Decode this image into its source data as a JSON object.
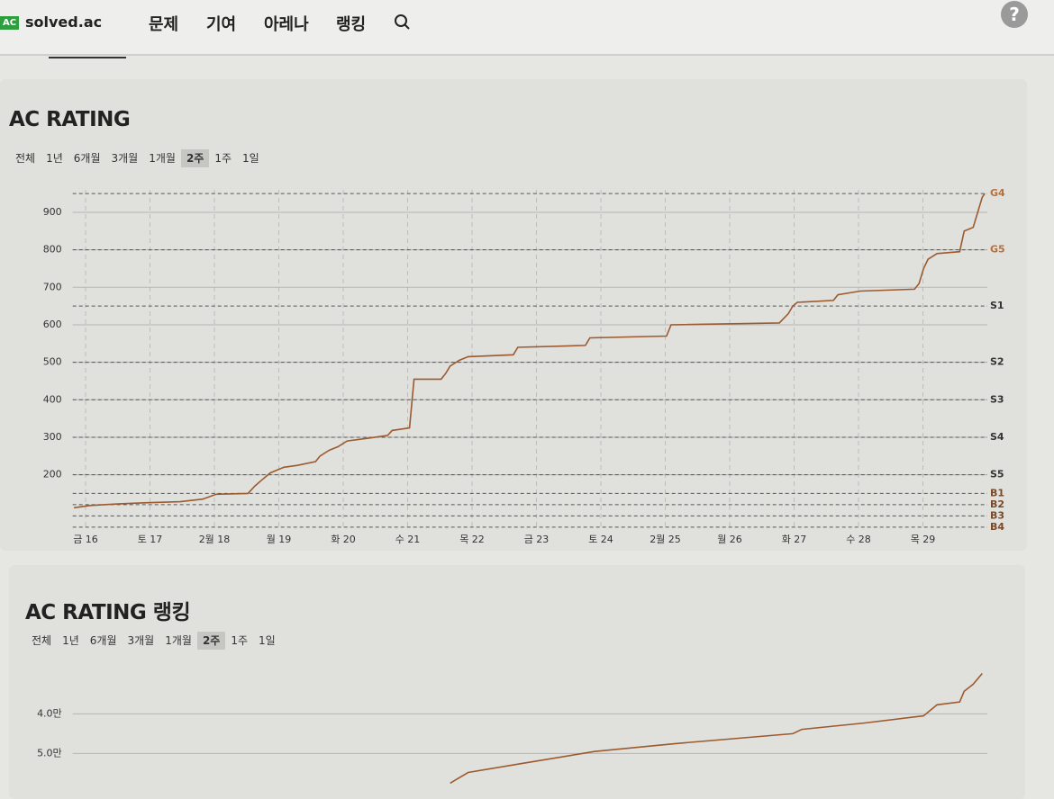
{
  "header": {
    "badge": "AC",
    "logo": "solved.ac",
    "nav": [
      "문제",
      "기여",
      "아레나",
      "랭킹"
    ],
    "help": "?"
  },
  "chart_data": [
    {
      "type": "line",
      "title": "AC RATING",
      "periods": [
        "전체",
        "1년",
        "6개월",
        "3개월",
        "1개월",
        "2주",
        "1주",
        "1일"
      ],
      "selected_period": 5,
      "x": [
        -0.18,
        0.07,
        0.49,
        0.91,
        1.47,
        1.82,
        2.03,
        2.52,
        2.63,
        2.73,
        2.87,
        3.08,
        3.29,
        3.57,
        3.64,
        3.78,
        3.92,
        4.06,
        4.41,
        4.69,
        4.76,
        5.03,
        5.1,
        5.52,
        5.59,
        5.66,
        5.8,
        5.94,
        6.64,
        6.71,
        7.76,
        7.83,
        9.02,
        9.09,
        10.77,
        10.91,
        10.98,
        11.05,
        11.61,
        11.68,
        12.03,
        12.87,
        12.94,
        13.01,
        13.08,
        13.22,
        13.57,
        13.64,
        13.78,
        13.85,
        13.92,
        13.96
      ],
      "series": [
        {
          "color": "#9c5a2e",
          "values": [
            112,
            118,
            122,
            125,
            128,
            135,
            148,
            150,
            170,
            185,
            205,
            220,
            225,
            235,
            250,
            265,
            275,
            290,
            298,
            305,
            318,
            325,
            455,
            455,
            470,
            490,
            505,
            515,
            520,
            540,
            545,
            565,
            570,
            600,
            605,
            630,
            650,
            660,
            665,
            680,
            690,
            695,
            710,
            750,
            775,
            790,
            795,
            850,
            860,
            900,
            940,
            950
          ]
        }
      ],
      "xlim": [
        -0.2,
        14
      ],
      "xticks": [
        {
          "value": 0,
          "label": "금 16"
        },
        {
          "value": 1,
          "label": "토 17"
        },
        {
          "value": 2,
          "label": "2월 18"
        },
        {
          "value": 3,
          "label": "월 19"
        },
        {
          "value": 4,
          "label": "화 20"
        },
        {
          "value": 5,
          "label": "수 21"
        },
        {
          "value": 6,
          "label": "목 22"
        },
        {
          "value": 7,
          "label": "금 23"
        },
        {
          "value": 8,
          "label": "토 24"
        },
        {
          "value": 9,
          "label": "2월 25"
        },
        {
          "value": 10,
          "label": "월 26"
        },
        {
          "value": 11,
          "label": "화 27"
        },
        {
          "value": 12,
          "label": "수 28"
        },
        {
          "value": 13,
          "label": "목 29"
        }
      ],
      "ylim": [
        55,
        960
      ],
      "yticks": [
        200,
        300,
        400,
        500,
        600,
        700,
        800,
        900
      ],
      "grid": true,
      "tiers": [
        {
          "label": "G4",
          "value": 950
        },
        {
          "label": "G5",
          "value": 800
        },
        {
          "label": "S1",
          "value": 650
        },
        {
          "label": "S2",
          "value": 500
        },
        {
          "label": "S3",
          "value": 400
        },
        {
          "label": "S4",
          "value": 300
        },
        {
          "label": "S5",
          "value": 200
        },
        {
          "label": "B1",
          "value": 150
        },
        {
          "label": "B2",
          "value": 120
        },
        {
          "label": "B3",
          "value": 90
        },
        {
          "label": "B4",
          "value": 60
        }
      ]
    },
    {
      "type": "line",
      "title": "AC RATING 랭킹",
      "periods": [
        "전체",
        "1년",
        "6개월",
        "3개월",
        "1개월",
        "2주",
        "1주",
        "1일"
      ],
      "selected_period": 5,
      "x": [
        5.66,
        5.94,
        6.78,
        7.9,
        9.16,
        10.98,
        11.12,
        12.1,
        13.01,
        13.22,
        13.57,
        13.64,
        13.78,
        13.92
      ],
      "series": [
        {
          "color": "#9c5a2e",
          "values": [
            57500,
            54800,
            52500,
            49500,
            47500,
            45000,
            43900,
            42300,
            40500,
            37700,
            37000,
            34300,
            32500,
            29800
          ]
        }
      ],
      "xlim": [
        -0.2,
        14
      ],
      "ylim": [
        29000,
        59000
      ],
      "y_inverted": true,
      "yticks": [
        {
          "value": 40000,
          "label": "4.0만"
        },
        {
          "value": 50000,
          "label": "5.0만"
        }
      ],
      "grid": true
    }
  ]
}
